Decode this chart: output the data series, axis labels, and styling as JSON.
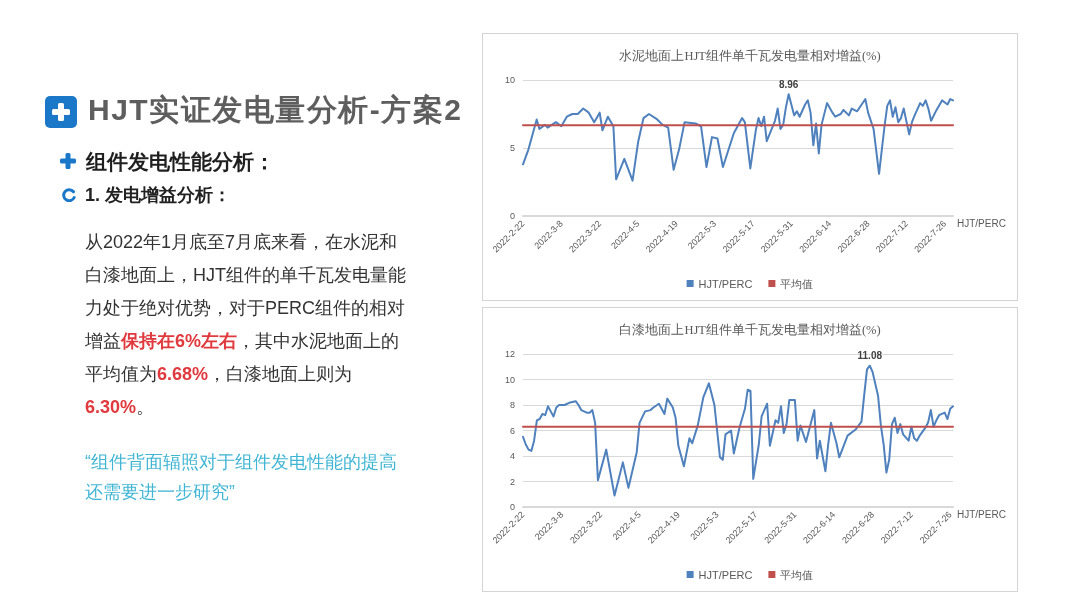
{
  "chart_data": [
    {
      "type": "other",
      "title": "HJT实证发电量分析-方案2",
      "subtitle": "组件发电性能分析：",
      "annotations": [
        "1. 发电增益分析：",
        "从2022年1月底至7月底来看，在水泥和白漆地面上，HJT组件的单千瓦发电量能力处于绝对优势，对于PERC组件的相对增益",
        "保持在6%左右",
        "，其中水泥地面上的平均值为",
        "6.68%",
        "，白漆地面上则为",
        "6.30%",
        "。",
        "“组件背面辐照对于组件发电性能的提高还需要进一步研究”"
      ]
    },
    {
      "type": "line",
      "title": "水泥地面上HJT组件单千瓦发电量相对增益(%)",
      "x": [
        "2022-02-22",
        "2022-02-24",
        "2022-02-27",
        "2022-02-28",
        "2022-03-02",
        "2022-03-03",
        "2022-03-06",
        "2022-03-08",
        "2022-03-10",
        "2022-03-12",
        "2022-03-14",
        "2022-03-16",
        "2022-03-18",
        "2022-03-20",
        "2022-03-22",
        "2022-03-23",
        "2022-03-25",
        "2022-03-27",
        "2022-03-28",
        "2022-03-31",
        "2022-04-03",
        "2022-04-05",
        "2022-04-07",
        "2022-04-09",
        "2022-04-12",
        "2022-04-14",
        "2022-04-16",
        "2022-04-18",
        "2022-04-20",
        "2022-04-22",
        "2022-04-26",
        "2022-04-28",
        "2022-04-30",
        "2022-05-02",
        "2022-05-04",
        "2022-05-06",
        "2022-05-10",
        "2022-05-13",
        "2022-05-14",
        "2022-05-16",
        "2022-05-18",
        "2022-05-19",
        "2022-05-20",
        "2022-05-21",
        "2022-05-22",
        "2022-05-23",
        "2022-05-25",
        "2022-05-26",
        "2022-05-27",
        "2022-05-28",
        "2022-05-29",
        "2022-05-30",
        "2022-06-01",
        "2022-06-02",
        "2022-06-03",
        "2022-06-05",
        "2022-06-06",
        "2022-06-07",
        "2022-06-08",
        "2022-06-09",
        "2022-06-10",
        "2022-06-11",
        "2022-06-13",
        "2022-06-15",
        "2022-06-16",
        "2022-06-18",
        "2022-06-19",
        "2022-06-21",
        "2022-06-22",
        "2022-06-24",
        "2022-06-27",
        "2022-06-28",
        "2022-06-30",
        "2022-07-02",
        "2022-07-04",
        "2022-07-05",
        "2022-07-06",
        "2022-07-07",
        "2022-07-08",
        "2022-07-09",
        "2022-07-10",
        "2022-07-11",
        "2022-07-13",
        "2022-07-14",
        "2022-07-15",
        "2022-07-17",
        "2022-07-18",
        "2022-07-19",
        "2022-07-20",
        "2022-07-21",
        "2022-07-23",
        "2022-07-25",
        "2022-07-27",
        "2022-07-28",
        "2022-07-29"
      ],
      "series": [
        {
          "name": "HJT/PERC",
          "color": "#4f81bd",
          "values": [
            3.8,
            4.9,
            7.1,
            6.4,
            6.7,
            6.5,
            6.9,
            6.6,
            7.3,
            7.5,
            7.5,
            7.9,
            7.6,
            6.9,
            7.6,
            6.3,
            7.3,
            6.6,
            2.7,
            4.2,
            2.6,
            5.4,
            7.2,
            7.5,
            7.1,
            6.7,
            6.5,
            3.4,
            4.9,
            6.9,
            6.8,
            6.6,
            3.6,
            5.8,
            5.7,
            3.6,
            6.1,
            7.2,
            6.9,
            3.5,
            6.3,
            7.2,
            6.6,
            7.3,
            5.5,
            6.0,
            7.0,
            7.9,
            6.4,
            6.7,
            8.0,
            8.96,
            7.4,
            7.7,
            7.3,
            8.2,
            8.5,
            7.6,
            5.2,
            6.8,
            4.6,
            6.7,
            8.3,
            7.6,
            7.3,
            7.5,
            7.8,
            7.4,
            7.9,
            7.7,
            8.6,
            7.6,
            6.4,
            3.1,
            6.6,
            8.1,
            8.5,
            7.3,
            8.0,
            6.9,
            7.2,
            7.9,
            6.0,
            6.9,
            7.4,
            8.3,
            8.1,
            8.5,
            7.9,
            7.0,
            7.8,
            8.5,
            8.2,
            8.6,
            8.5
          ],
          "value_labels": [
            null,
            null,
            null,
            null,
            null,
            null,
            null,
            null,
            null,
            null,
            null,
            null,
            null,
            null,
            null,
            null,
            null,
            null,
            null,
            null,
            null,
            null,
            null,
            null,
            null,
            null,
            null,
            null,
            null,
            null,
            null,
            null,
            null,
            null,
            null,
            null,
            null,
            null,
            null,
            null,
            null,
            null,
            null,
            null,
            null,
            null,
            null,
            null,
            null,
            null,
            null,
            "8.96",
            null,
            null,
            null,
            null,
            null,
            null,
            null,
            null,
            null,
            null,
            null,
            null,
            null,
            null,
            null,
            null,
            null,
            null,
            null,
            null,
            null,
            null,
            null,
            null,
            null,
            null,
            null,
            null,
            null,
            null,
            null,
            null,
            null,
            null,
            null,
            null,
            null,
            null,
            null,
            null,
            null,
            null,
            null
          ]
        },
        {
          "name": "平均值",
          "color": "#c0504d",
          "x": [
            "2022-02-22",
            "2022-07-29"
          ],
          "values": [
            6.68,
            6.68
          ]
        }
      ],
      "xlim": [
        "2022-02-22",
        "2022-07-29"
      ],
      "xticks": [
        {
          "value": "2022-02-22",
          "label": "2022-2-22"
        },
        {
          "value": "2022-03-08",
          "label": "2022-3-8"
        },
        {
          "value": "2022-03-22",
          "label": "2022-3-22"
        },
        {
          "value": "2022-04-05",
          "label": "2022-4-5"
        },
        {
          "value": "2022-04-19",
          "label": "2022-4-19"
        },
        {
          "value": "2022-05-03",
          "label": "2022-5-3"
        },
        {
          "value": "2022-05-17",
          "label": "2022-5-17"
        },
        {
          "value": "2022-05-31",
          "label": "2022-5-31"
        },
        {
          "value": "2022-06-14",
          "label": "2022-6-14"
        },
        {
          "value": "2022-06-28",
          "label": "2022-6-28"
        },
        {
          "value": "2022-07-12",
          "label": "2022-7-12"
        },
        {
          "value": "2022-07-26",
          "label": "2022-7-26"
        }
      ],
      "ylim": [
        0,
        10
      ],
      "yticks": [
        0,
        5,
        10
      ],
      "grid": "y",
      "legend": "bottom",
      "marker": "none",
      "annotations": [
        "HJT/PERC"
      ]
    },
    {
      "type": "line",
      "title": "白漆地面上HJT组件单千瓦发电量相对增益(%)",
      "x": [
        "2022-02-22",
        "2022-02-23",
        "2022-02-24",
        "2022-02-25",
        "2022-02-26",
        "2022-02-27",
        "2022-02-28",
        "2022-03-01",
        "2022-03-02",
        "2022-03-03",
        "2022-03-04",
        "2022-03-05",
        "2022-03-06",
        "2022-03-07",
        "2022-03-09",
        "2022-03-11",
        "2022-03-13",
        "2022-03-14",
        "2022-03-15",
        "2022-03-17",
        "2022-03-18",
        "2022-03-19",
        "2022-03-20",
        "2022-03-21",
        "2022-03-24",
        "2022-03-27",
        "2022-03-30",
        "2022-04-01",
        "2022-04-04",
        "2022-04-05",
        "2022-04-07",
        "2022-04-09",
        "2022-04-10",
        "2022-04-12",
        "2022-04-14",
        "2022-04-15",
        "2022-04-17",
        "2022-04-18",
        "2022-04-19",
        "2022-04-21",
        "2022-04-23",
        "2022-04-24",
        "2022-04-26",
        "2022-04-28",
        "2022-04-30",
        "2022-05-02",
        "2022-05-04",
        "2022-05-05",
        "2022-05-06",
        "2022-05-08",
        "2022-05-09",
        "2022-05-11",
        "2022-05-13",
        "2022-05-14",
        "2022-05-15",
        "2022-05-16",
        "2022-05-18",
        "2022-05-19",
        "2022-05-21",
        "2022-05-22",
        "2022-05-24",
        "2022-05-25",
        "2022-05-26",
        "2022-05-27",
        "2022-05-28",
        "2022-05-29",
        "2022-05-31",
        "2022-06-01",
        "2022-06-02",
        "2022-06-04",
        "2022-06-07",
        "2022-06-08",
        "2022-06-09",
        "2022-06-11",
        "2022-06-12",
        "2022-06-13",
        "2022-06-15",
        "2022-06-16",
        "2022-06-19",
        "2022-06-22",
        "2022-06-24",
        "2022-06-25",
        "2022-06-26",
        "2022-06-27",
        "2022-06-28",
        "2022-06-30",
        "2022-07-01",
        "2022-07-02",
        "2022-07-03",
        "2022-07-04",
        "2022-07-05",
        "2022-07-06",
        "2022-07-07",
        "2022-07-08",
        "2022-07-09",
        "2022-07-11",
        "2022-07-12",
        "2022-07-13",
        "2022-07-14",
        "2022-07-15",
        "2022-07-17",
        "2022-07-18",
        "2022-07-19",
        "2022-07-20",
        "2022-07-21",
        "2022-07-22",
        "2022-07-24",
        "2022-07-25",
        "2022-07-26",
        "2022-07-27"
      ],
      "series": [
        {
          "name": "HJT/PERC",
          "color": "#4f81bd",
          "values": [
            5.5,
            4.9,
            4.5,
            4.4,
            5.2,
            6.8,
            6.9,
            7.3,
            7.2,
            7.9,
            7.5,
            7.1,
            7.8,
            8.0,
            8.0,
            8.2,
            8.3,
            8.0,
            7.6,
            7.4,
            7.4,
            7.6,
            6.6,
            2.1,
            4.5,
            0.9,
            3.5,
            1.5,
            4.3,
            6.6,
            7.5,
            7.6,
            7.8,
            8.1,
            7.3,
            8.5,
            7.8,
            7.0,
            4.8,
            3.2,
            5.4,
            5.0,
            6.4,
            8.6,
            9.7,
            8.0,
            3.9,
            3.7,
            5.7,
            6.0,
            4.2,
            6.2,
            7.7,
            9.2,
            9.1,
            2.2,
            4.9,
            7.1,
            8.1,
            4.8,
            6.8,
            6.6,
            7.9,
            5.8,
            6.5,
            8.4,
            8.4,
            5.2,
            6.4,
            5.1,
            7.6,
            3.8,
            5.2,
            2.8,
            4.9,
            6.6,
            5.0,
            3.9,
            5.6,
            6.1,
            6.7,
            8.8,
            10.8,
            11.08,
            10.6,
            8.7,
            6.4,
            4.9,
            2.7,
            3.7,
            6.5,
            7.0,
            5.8,
            6.5,
            5.7,
            5.2,
            6.3,
            5.4,
            5.2,
            5.6,
            6.2,
            6.6,
            7.6,
            6.3,
            6.8,
            7.2,
            7.4,
            6.9,
            7.7,
            7.9
          ],
          "value_labels": [
            null,
            null,
            null,
            null,
            null,
            null,
            null,
            null,
            null,
            null,
            null,
            null,
            null,
            null,
            null,
            null,
            null,
            null,
            null,
            null,
            null,
            null,
            null,
            null,
            null,
            null,
            null,
            null,
            null,
            null,
            null,
            null,
            null,
            null,
            null,
            null,
            null,
            null,
            null,
            null,
            null,
            null,
            null,
            null,
            null,
            null,
            null,
            null,
            null,
            null,
            null,
            null,
            null,
            null,
            null,
            null,
            null,
            null,
            null,
            null,
            null,
            null,
            null,
            null,
            null,
            null,
            null,
            null,
            null,
            null,
            null,
            null,
            null,
            null,
            null,
            null,
            null,
            null,
            null,
            null,
            null,
            null,
            null,
            "11.08",
            null,
            null,
            null,
            null,
            null,
            null,
            null,
            null,
            null,
            null,
            null,
            null,
            null,
            null,
            null,
            null,
            null,
            null,
            null,
            null,
            null,
            null,
            null,
            null,
            null,
            null
          ]
        },
        {
          "name": "平均值",
          "color": "#c0504d",
          "x": [
            "2022-02-22",
            "2022-07-27"
          ],
          "values": [
            6.3,
            6.3
          ]
        }
      ],
      "xlim": [
        "2022-02-22",
        "2022-07-27"
      ],
      "xticks": [
        {
          "value": "2022-02-22",
          "label": "2022-2-22"
        },
        {
          "value": "2022-03-08",
          "label": "2022-3-8"
        },
        {
          "value": "2022-03-22",
          "label": "2022-3-22"
        },
        {
          "value": "2022-04-05",
          "label": "2022-4-5"
        },
        {
          "value": "2022-04-19",
          "label": "2022-4-19"
        },
        {
          "value": "2022-05-03",
          "label": "2022-5-3"
        },
        {
          "value": "2022-05-17",
          "label": "2022-5-17"
        },
        {
          "value": "2022-05-31",
          "label": "2022-5-31"
        },
        {
          "value": "2022-06-14",
          "label": "2022-6-14"
        },
        {
          "value": "2022-06-28",
          "label": "2022-6-28"
        },
        {
          "value": "2022-07-12",
          "label": "2022-7-12"
        },
        {
          "value": "2022-07-26",
          "label": "2022-7-26"
        }
      ],
      "ylim": [
        0,
        12
      ],
      "yticks": [
        0,
        2,
        4,
        6,
        8,
        10,
        12
      ],
      "grid": "y",
      "legend": "bottom",
      "marker": "none",
      "annotations": [
        "HJT/PERC"
      ]
    }
  ]
}
